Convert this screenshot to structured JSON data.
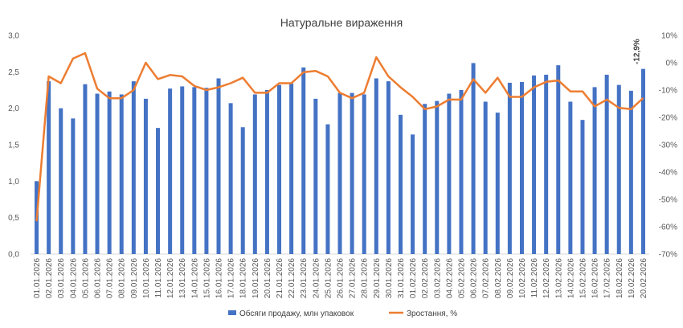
{
  "chart_data": {
    "type": "bar+line",
    "title": "Натуральне вираження",
    "categories": [
      "01.01.2026",
      "02.01.2026",
      "03.01.2026",
      "04.01.2026",
      "05.01.2026",
      "06.01.2026",
      "07.01.2026",
      "08.01.2026",
      "09.01.2026",
      "10.01.2026",
      "11.01.2026",
      "12.01.2026",
      "13.01.2026",
      "14.01.2026",
      "15.01.2026",
      "16.01.2026",
      "17.01.2026",
      "18.01.2026",
      "19.01.2026",
      "20.01.2026",
      "21.01.2026",
      "22.01.2026",
      "23.01.2026",
      "24.01.2026",
      "25.01.2026",
      "26.01.2026",
      "27.01.2026",
      "28.01.2026",
      "29.01.2026",
      "30.01.2026",
      "31.01.2026",
      "01.02.2026",
      "02.02.2026",
      "03.02.2026",
      "04.02.2026",
      "05.02.2026",
      "06.02.2026",
      "07.02.2026",
      "08.02.2026",
      "09.02.2026",
      "10.02.2026",
      "11.02.2026",
      "12.02.2026",
      "13.02.2026",
      "14.02.2026",
      "15.02.2026",
      "16.02.2026",
      "17.02.2026",
      "18.02.2026",
      "19.02.2026",
      "20.02.2026"
    ],
    "series": [
      {
        "name": "Обсяги продажу, млн упаковок",
        "axis": "left",
        "kind": "bar",
        "color": "#4472C4",
        "values": [
          1.0,
          2.37,
          2.0,
          1.86,
          2.33,
          2.2,
          2.23,
          2.19,
          2.37,
          2.13,
          1.73,
          2.27,
          2.3,
          2.29,
          2.28,
          2.41,
          2.07,
          1.74,
          2.19,
          2.25,
          2.32,
          2.34,
          2.56,
          2.13,
          1.78,
          2.21,
          2.21,
          2.19,
          2.41,
          2.37,
          1.91,
          1.64,
          2.06,
          2.1,
          2.2,
          2.25,
          2.62,
          2.09,
          1.94,
          2.35,
          2.36,
          2.45,
          2.46,
          2.59,
          2.09,
          1.84,
          2.29,
          2.46,
          2.32,
          2.24,
          2.54
        ]
      },
      {
        "name": "Зростання, %",
        "axis": "right",
        "kind": "line",
        "color": "#ED7D31",
        "values": [
          -58,
          -5,
          -7.5,
          1.5,
          3.5,
          -9.5,
          -13,
          -13,
          -10,
          0,
          -6,
          -4.5,
          -5,
          -8.5,
          -10,
          -9,
          -7.5,
          -5.5,
          -11,
          -11,
          -7.5,
          -7.5,
          -3.5,
          -3,
          -5,
          -11,
          -13,
          -11,
          2,
          -5,
          -9,
          -12.5,
          -17,
          -16,
          -13.5,
          -13.5,
          -6,
          -11,
          -5.5,
          -12.5,
          -12.5,
          -9,
          -7,
          -6.5,
          -10.5,
          -10.5,
          -16,
          -13.5,
          -16.5,
          -17,
          -12.9
        ]
      }
    ],
    "y_left": {
      "min": 0,
      "max": 3,
      "ticks": [
        "0,0",
        "0,5",
        "1,0",
        "1,5",
        "2,0",
        "2,5",
        "3,0"
      ]
    },
    "y_right": {
      "min": -70,
      "max": 10,
      "ticks": [
        "-70%",
        "-60%",
        "-50%",
        "-40%",
        "-30%",
        "-20%",
        "-10%",
        "0%",
        "10%"
      ]
    },
    "annotation": {
      "text": "-12,9%"
    },
    "legend_position": "bottom",
    "grid": false
  }
}
